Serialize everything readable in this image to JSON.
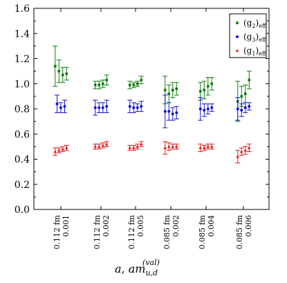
{
  "chart_data": {
    "type": "scatter",
    "ylim": [
      0.0,
      1.6
    ],
    "yticks": [
      "0.0",
      "0.2",
      "0.4",
      "0.6",
      "0.8",
      "1.0",
      "1.2",
      "1.4",
      "1.6"
    ],
    "xlabel": "a,  am",
    "xlabel_sup": "(val)",
    "xlabel_sub": "u,d",
    "categories": [
      {
        "a": "0.112 fm",
        "am": "0.001"
      },
      {
        "a": "0.112 fm",
        "am": "0.002"
      },
      {
        "a": "0.112 fm",
        "am": "0.005"
      },
      {
        "a": "0.085 fm",
        "am": "0.002"
      },
      {
        "a": "0.085 fm",
        "am": "0.004"
      },
      {
        "a": "0.085 fm",
        "am": "0.006"
      }
    ],
    "legend_position": "top-right",
    "grid": false,
    "series": [
      {
        "name": "(g2)eff",
        "name_main": "(g",
        "name_sub2": "2",
        "name_close": ")",
        "name_sub": "eff",
        "color": "#0a7a0a",
        "marker": "square",
        "groups": [
          {
            "values": [
              1.14,
              1.1,
              1.07,
              1.08
            ],
            "errors": [
              0.16,
              0.09,
              0.06,
              0.05
            ]
          },
          {
            "values": [
              0.99,
              0.99,
              1.0,
              1.03
            ],
            "errors": [
              0.03,
              0.03,
              0.03,
              0.04
            ]
          },
          {
            "values": [
              0.99,
              0.99,
              1.0,
              1.03
            ],
            "errors": [
              0.03,
              0.02,
              0.02,
              0.03
            ]
          },
          {
            "values": [
              0.95,
              0.92,
              0.95,
              0.96
            ],
            "errors": [
              0.11,
              0.07,
              0.06,
              0.05
            ]
          },
          {
            "values": [
              0.94,
              0.95,
              0.98,
              1.0
            ],
            "errors": [
              0.07,
              0.07,
              0.07,
              0.05
            ]
          },
          {
            "values": [
              0.86,
              0.9,
              0.92,
              1.03
            ],
            "errors": [
              0.16,
              0.08,
              0.07,
              0.07
            ]
          }
        ]
      },
      {
        "name": "(g3)eff",
        "name_main": "(g",
        "name_sub2": "3",
        "name_close": ")",
        "name_sub": "eff",
        "color": "#1212d6",
        "marker": "circle",
        "groups": [
          {
            "values": [
              0.84,
              0.81,
              0.82
            ],
            "errors": [
              0.07,
              0.04,
              0.05
            ]
          },
          {
            "values": [
              0.81,
              0.81,
              0.81,
              0.82
            ],
            "errors": [
              0.06,
              0.04,
              0.04,
              0.05
            ]
          },
          {
            "values": [
              0.82,
              0.81,
              0.81,
              0.82
            ],
            "errors": [
              0.05,
              0.04,
              0.03,
              0.04
            ]
          },
          {
            "values": [
              0.78,
              0.78,
              0.76,
              0.77
            ],
            "errors": [
              0.13,
              0.07,
              0.05,
              0.05
            ]
          },
          {
            "values": [
              0.8,
              0.79,
              0.8,
              0.81
            ],
            "errors": [
              0.09,
              0.05,
              0.04,
              0.03
            ]
          },
          {
            "values": [
              0.8,
              0.79,
              0.81,
              0.82
            ],
            "errors": [
              0.09,
              0.05,
              0.04,
              0.03
            ]
          }
        ]
      },
      {
        "name": "(g1)eff",
        "name_main": "(g",
        "name_sub2": "1",
        "name_close": ")",
        "name_sub": "eff",
        "color": "#e01616",
        "marker": "triangle",
        "groups": [
          {
            "values": [
              0.46,
              0.47,
              0.48,
              0.49
            ],
            "errors": [
              0.03,
              0.02,
              0.02,
              0.02
            ]
          },
          {
            "values": [
              0.5,
              0.5,
              0.51,
              0.52
            ],
            "errors": [
              0.02,
              0.02,
              0.02,
              0.02
            ]
          },
          {
            "values": [
              0.49,
              0.49,
              0.5,
              0.52
            ],
            "errors": [
              0.02,
              0.02,
              0.02,
              0.02
            ]
          },
          {
            "values": [
              0.49,
              0.5,
              0.5,
              0.5
            ],
            "errors": [
              0.05,
              0.03,
              0.02,
              0.02
            ]
          },
          {
            "values": [
              0.49,
              0.49,
              0.5,
              0.5
            ],
            "errors": [
              0.03,
              0.02,
              0.02,
              0.02
            ]
          },
          {
            "values": [
              0.42,
              0.46,
              0.47,
              0.49
            ],
            "errors": [
              0.05,
              0.03,
              0.03,
              0.03
            ]
          }
        ]
      }
    ]
  }
}
